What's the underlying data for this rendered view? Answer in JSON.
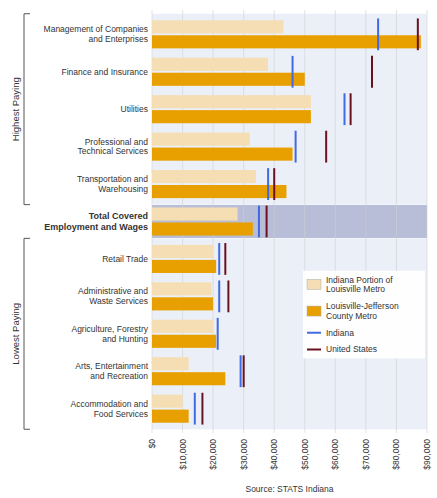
{
  "chart_data": {
    "type": "bar",
    "orientation": "horizontal",
    "categories": [
      "Management of Companies\nand Enterprises",
      "Finance and Insurance",
      "Utilities",
      "Professional and\nTechnical Services",
      "Transportation and\nWarehousing",
      "Total Covered\nEmployment and Wages",
      "Retail Trade",
      "Administrative and\nWaste Services",
      "Agriculture, Forestry\nand Hunting",
      "Arts, Entertainment\nand Recreation",
      "Accommodation and\nFood Services"
    ],
    "series": [
      {
        "name": "Indiana Portion of\nLouisville Metro",
        "type": "bar",
        "color": "#F5DEB3",
        "values": [
          43000,
          38000,
          52000,
          32000,
          34000,
          28000,
          20000,
          19500,
          20000,
          12000,
          10000
        ]
      },
      {
        "name": "Louisville-Jefferson\nCounty Metro",
        "type": "bar",
        "color": "#E8A000",
        "values": [
          88000,
          50000,
          52000,
          46000,
          44000,
          33000,
          21000,
          20000,
          21000,
          24000,
          12000
        ]
      },
      {
        "name": "Indiana",
        "type": "reference_line",
        "color": "#4169E1",
        "values": [
          74000,
          46000,
          63000,
          47000,
          38000,
          35000,
          22000,
          22000,
          21500,
          29000,
          14000
        ]
      },
      {
        "name": "United States",
        "type": "reference_line",
        "color": "#6B1020",
        "values": [
          87000,
          72000,
          65000,
          57000,
          40000,
          37500,
          24000,
          25000,
          null,
          30000,
          16500
        ]
      }
    ],
    "xlim": [
      0,
      90000
    ],
    "xticks": [
      {
        "value": 0,
        "label": "$0"
      },
      {
        "value": 10000,
        "label": "$10,000"
      },
      {
        "value": 20000,
        "label": "$20,000"
      },
      {
        "value": 30000,
        "label": "$30,000"
      },
      {
        "value": 40000,
        "label": "$40,000"
      },
      {
        "value": 50000,
        "label": "$50,000"
      },
      {
        "value": 60000,
        "label": "$60,000"
      },
      {
        "value": 70000,
        "label": "$70,000"
      },
      {
        "value": 80000,
        "label": "$80,000"
      },
      {
        "value": 90000,
        "label": "$90,000"
      }
    ],
    "grid": true,
    "legend": "lower right",
    "annotations": [
      {
        "text": "Highest Paying",
        "from": "Management of Companies\nand Enterprises",
        "to": "Transportation and\nWarehousing"
      },
      {
        "text": "Lowest Paying",
        "from": "Retail Trade",
        "to": "Accommodation and\nFood Services"
      },
      {
        "text": "Source: STATS Indiana"
      }
    ]
  }
}
